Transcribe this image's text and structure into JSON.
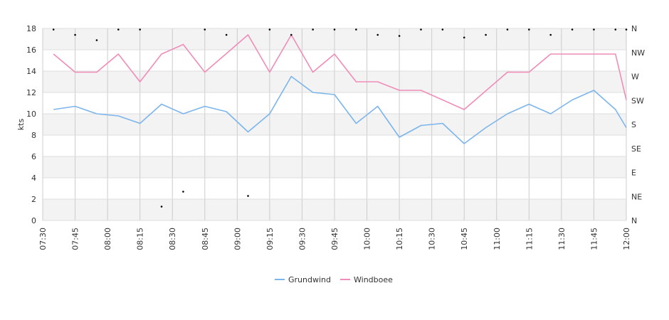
{
  "chart_data": {
    "type": "line",
    "ylabel": "kts",
    "ylim": [
      0,
      18
    ],
    "y_ticks": [
      "0",
      "2",
      "4",
      "6",
      "8",
      "10",
      "12",
      "14",
      "16",
      "18"
    ],
    "x_range": [
      "07:30",
      "12:00"
    ],
    "x_ticks": [
      "07:30",
      "07:45",
      "08:00",
      "08:15",
      "08:30",
      "08:45",
      "09:00",
      "09:15",
      "09:30",
      "09:45",
      "10:00",
      "10:15",
      "10:30",
      "10:45",
      "11:00",
      "11:15",
      "11:30",
      "11:45",
      "12:00"
    ],
    "right_axis": {
      "labels": [
        "N",
        "NE",
        "E",
        "SE",
        "S",
        "SW",
        "W",
        "NW",
        "N"
      ],
      "range": [
        0,
        360
      ]
    },
    "grid": "horizontal bands and vertical lines",
    "legend_position": "bottom-center",
    "series": [
      {
        "name": "Grundwind",
        "color": "#7cb5ec",
        "points": [
          [
            "07:35",
            10.4
          ],
          [
            "07:45",
            10.7
          ],
          [
            "07:55",
            10.0
          ],
          [
            "08:05",
            9.8
          ],
          [
            "08:15",
            9.1
          ],
          [
            "08:25",
            10.9
          ],
          [
            "08:35",
            10.0
          ],
          [
            "08:45",
            10.7
          ],
          [
            "08:55",
            10.2
          ],
          [
            "09:05",
            8.3
          ],
          [
            "09:15",
            10.0
          ],
          [
            "09:25",
            13.5
          ],
          [
            "09:35",
            12.0
          ],
          [
            "09:45",
            11.8
          ],
          [
            "09:55",
            9.1
          ],
          [
            "10:05",
            10.7
          ],
          [
            "10:15",
            7.8
          ],
          [
            "10:25",
            8.9
          ],
          [
            "10:35",
            9.1
          ],
          [
            "10:45",
            7.2
          ],
          [
            "10:55",
            8.7
          ],
          [
            "11:05",
            10.0
          ],
          [
            "11:15",
            10.9
          ],
          [
            "11:25",
            10.0
          ],
          [
            "11:35",
            11.3
          ],
          [
            "11:45",
            12.2
          ],
          [
            "11:55",
            10.4
          ],
          [
            "12:00",
            8.7
          ]
        ]
      },
      {
        "name": "Windboee",
        "color": "#f08cb8",
        "points": [
          [
            "07:35",
            15.6
          ],
          [
            "07:45",
            13.9
          ],
          [
            "07:55",
            13.9
          ],
          [
            "08:05",
            15.6
          ],
          [
            "08:15",
            13.0
          ],
          [
            "08:25",
            15.6
          ],
          [
            "08:35",
            16.5
          ],
          [
            "08:45",
            13.9
          ],
          [
            "09:05",
            17.4
          ],
          [
            "09:15",
            13.9
          ],
          [
            "09:25",
            17.4
          ],
          [
            "09:35",
            13.9
          ],
          [
            "09:45",
            15.6
          ],
          [
            "09:55",
            13.0
          ],
          [
            "10:05",
            13.0
          ],
          [
            "10:15",
            12.2
          ],
          [
            "10:25",
            12.2
          ],
          [
            "10:45",
            10.4
          ],
          [
            "11:05",
            13.9
          ],
          [
            "11:15",
            13.9
          ],
          [
            "11:25",
            15.6
          ],
          [
            "11:35",
            15.6
          ],
          [
            "11:55",
            15.6
          ],
          [
            "12:00",
            11.3
          ]
        ]
      }
    ],
    "direction_points": [
      [
        "07:35",
        358
      ],
      [
        "07:45",
        348
      ],
      [
        "07:55",
        338
      ],
      [
        "08:05",
        358
      ],
      [
        "08:15",
        358
      ],
      [
        "08:25",
        26
      ],
      [
        "08:35",
        54
      ],
      [
        "08:45",
        358
      ],
      [
        "08:55",
        348
      ],
      [
        "09:05",
        46
      ],
      [
        "09:15",
        358
      ],
      [
        "09:25",
        348
      ],
      [
        "09:35",
        358
      ],
      [
        "09:45",
        358
      ],
      [
        "09:55",
        358
      ],
      [
        "10:05",
        348
      ],
      [
        "10:15",
        346
      ],
      [
        "10:25",
        358
      ],
      [
        "10:35",
        358
      ],
      [
        "10:45",
        343
      ],
      [
        "10:55",
        348
      ],
      [
        "11:05",
        358
      ],
      [
        "11:15",
        358
      ],
      [
        "11:25",
        348
      ],
      [
        "11:35",
        358
      ],
      [
        "11:45",
        358
      ],
      [
        "11:55",
        358
      ],
      [
        "12:00",
        358
      ]
    ]
  }
}
